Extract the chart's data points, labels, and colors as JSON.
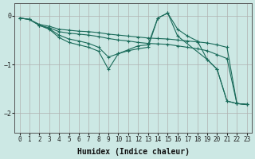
{
  "xlabel": "Humidex (Indice chaleur)",
  "ylabel": "",
  "background_color": "#cce8e4",
  "grid_color": "#b0b0b0",
  "line_color": "#1a6b5a",
  "xlim": [
    -0.5,
    23.5
  ],
  "ylim": [
    -2.4,
    0.25
  ],
  "yticks": [
    0,
    -1,
    -2
  ],
  "xticks": [
    0,
    1,
    2,
    3,
    4,
    5,
    6,
    7,
    8,
    9,
    10,
    11,
    12,
    13,
    14,
    15,
    16,
    17,
    18,
    19,
    20,
    21,
    22,
    23
  ],
  "curves": [
    {
      "x": [
        0,
        1,
        2,
        3,
        4,
        5,
        6,
        7,
        8,
        9,
        10,
        11,
        12,
        13,
        14,
        15,
        16,
        17,
        18,
        19,
        20,
        21,
        22,
        23
      ],
      "y": [
        -0.05,
        -0.08,
        -0.18,
        -0.22,
        -0.28,
        -0.3,
        -0.32,
        -0.33,
        -0.35,
        -0.38,
        -0.4,
        -0.42,
        -0.44,
        -0.46,
        -0.47,
        -0.48,
        -0.5,
        -0.52,
        -0.54,
        -0.56,
        -0.6,
        -0.65,
        -1.8,
        -1.82
      ]
    },
    {
      "x": [
        0,
        1,
        2,
        3,
        4,
        5,
        6,
        7,
        8,
        9,
        10,
        11,
        12,
        13,
        14,
        15,
        16,
        17,
        18,
        19,
        20,
        21,
        22,
        23
      ],
      "y": [
        -0.05,
        -0.08,
        -0.2,
        -0.25,
        -0.33,
        -0.36,
        -0.38,
        -0.4,
        -0.43,
        -0.47,
        -0.5,
        -0.52,
        -0.55,
        -0.57,
        -0.58,
        -0.59,
        -0.62,
        -0.65,
        -0.68,
        -0.72,
        -0.8,
        -0.88,
        -1.8,
        -1.82
      ]
    },
    {
      "x": [
        0,
        1,
        2,
        3,
        4,
        5,
        6,
        7,
        8,
        9,
        10,
        11,
        12,
        13,
        14,
        15,
        16,
        17,
        18,
        19,
        20,
        21,
        22,
        23
      ],
      "y": [
        -0.05,
        -0.08,
        -0.2,
        -0.27,
        -0.4,
        -0.48,
        -0.52,
        -0.57,
        -0.65,
        -0.85,
        -0.78,
        -0.7,
        -0.62,
        -0.6,
        -0.05,
        0.05,
        -0.28,
        -0.42,
        -0.52,
        -0.9,
        -1.1,
        -1.75,
        -1.8,
        -1.82
      ]
    },
    {
      "x": [
        2,
        3,
        4,
        5,
        6,
        7,
        8,
        9,
        10,
        11,
        12,
        13,
        14,
        15,
        16,
        19,
        20,
        21,
        22,
        23
      ],
      "y": [
        -0.2,
        -0.28,
        -0.45,
        -0.55,
        -0.6,
        -0.65,
        -0.73,
        -1.1,
        -0.78,
        -0.72,
        -0.68,
        -0.65,
        -0.05,
        0.05,
        -0.42,
        -0.9,
        -1.1,
        -1.75,
        -1.8,
        -1.82
      ]
    }
  ]
}
